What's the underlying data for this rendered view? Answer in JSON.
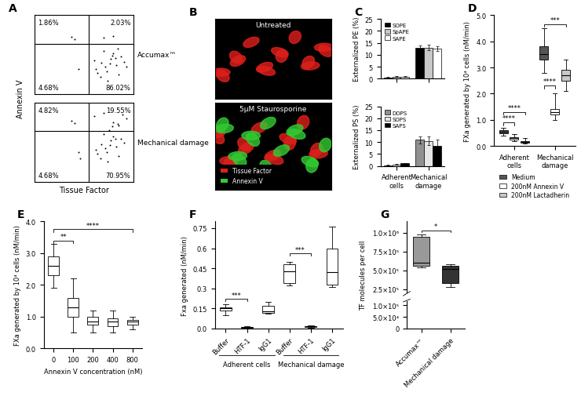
{
  "chart_data": [
    {
      "panel": "A",
      "type": "scatter",
      "label": "Accumax™",
      "y_label": "Annexin V",
      "log": true,
      "xlim": [
        1,
        10000
      ],
      "ylim": [
        1,
        10000
      ],
      "tick_labels": false,
      "color": "#000000",
      "marker": "o",
      "gate": {
        "x": 150,
        "y": 350
      },
      "quadrants": {
        "upper_left": "1.86%",
        "upper_right": "2.03%",
        "lower_left": "4.68%",
        "lower_right": "86.02%"
      },
      "x": [
        300,
        500,
        800,
        1200,
        2000,
        3000,
        450,
        700,
        1500,
        2500,
        4000,
        600,
        900,
        1800,
        350,
        1100,
        2200,
        5000,
        250,
        1400,
        60,
        40,
        30,
        600,
        1500
      ],
      "y": [
        20,
        40,
        15,
        60,
        30,
        80,
        8,
        25,
        120,
        10,
        45,
        150,
        5,
        70,
        12,
        35,
        200,
        25,
        50,
        90,
        20,
        600,
        800,
        700,
        900
      ]
    },
    {
      "type": "scatter",
      "label": "Mechanical damage",
      "x_label": "Tissue Factor",
      "log": true,
      "xlim": [
        1,
        10000
      ],
      "ylim": [
        1,
        10000
      ],
      "tick_labels": false,
      "color": "#000000",
      "marker": "o",
      "gate": {
        "x": 150,
        "y": 350
      },
      "quadrants": {
        "upper_left": "4.82%",
        "upper_right": "19.55%",
        "lower_left": "4.68%",
        "lower_right": "70.95%"
      },
      "x": [
        300,
        500,
        800,
        1200,
        2000,
        3000,
        450,
        700,
        1500,
        2500,
        4000,
        600,
        900,
        1800,
        350,
        1100,
        2200,
        5000,
        250,
        1400,
        60,
        40,
        30,
        600,
        1500,
        800,
        2500,
        3500,
        1000,
        70
      ],
      "y": [
        40,
        80,
        30,
        120,
        60,
        150,
        15,
        50,
        200,
        20,
        90,
        250,
        10,
        140,
        25,
        70,
        800,
        1500,
        2000,
        600,
        30,
        900,
        1200,
        3000,
        1000,
        5000,
        700,
        2500,
        400,
        15
      ]
    },
    {
      "panel": "B",
      "type": "image",
      "legend": "lower left",
      "channels": [
        {
          "name": "Tissue Factor",
          "color": "#e0201c"
        },
        {
          "name": "Annexin V",
          "color": "#33cc33"
        }
      ],
      "images": [
        {
          "title": "Untreated",
          "channels": [
            "Tissue Factor"
          ]
        },
        {
          "title": "5µM Staurosporine",
          "channels": [
            "Tissue Factor",
            "Annexin V"
          ]
        }
      ]
    },
    {
      "panel": "C",
      "type": "bar",
      "y_label": "Externalized PE (%)",
      "tick_labels": "y",
      "categories": [
        "Adherent cells",
        "Mechanical damage"
      ],
      "ylim": [
        0,
        25
      ],
      "yticks": [
        0,
        5,
        10,
        15,
        20,
        25
      ],
      "legend": "upper left",
      "series": [
        {
          "name": "SOPE",
          "color": "#000000",
          "values": [
            0.5,
            13
          ],
          "errors": [
            0.1,
            1.0
          ]
        },
        {
          "name": "SpAPE",
          "color": "#c8c8c8",
          "values": [
            0.8,
            13
          ],
          "errors": [
            0.2,
            1.2
          ]
        },
        {
          "name": "SAPE",
          "color": "#ffffff",
          "values": [
            0.8,
            12.5
          ],
          "errors": [
            0.2,
            1.0
          ]
        }
      ]
    },
    {
      "type": "bar",
      "y_label": "Externalized PS (%)",
      "categories": [
        "Adherent cells",
        "Mechanical damage"
      ],
      "ylim": [
        0,
        25
      ],
      "yticks": [
        0,
        5,
        10,
        15,
        20,
        25
      ],
      "legend": "upper left",
      "series": [
        {
          "name": "DOPS",
          "color": "#909090",
          "values": [
            0.3,
            11
          ],
          "errors": [
            0.1,
            1.5
          ]
        },
        {
          "name": "SOPS",
          "color": "#e6e6e6",
          "values": [
            0.6,
            10.5
          ],
          "errors": [
            0.2,
            1.8
          ]
        },
        {
          "name": "SAPS",
          "color": "#000000",
          "values": [
            1.0,
            8.5
          ],
          "errors": [
            0.3,
            2.5
          ]
        }
      ]
    },
    {
      "panel": "D",
      "type": "box",
      "y_label": "FXa generated by 10⁴ cells (nM/min)",
      "categories": [
        "Adherent cells",
        "Mechanical damage"
      ],
      "ylim": [
        0,
        5
      ],
      "yticks": [
        {
          "value": 0,
          "label": "0.0"
        },
        {
          "value": 1,
          "label": "1.0"
        },
        {
          "value": 2,
          "label": "2.0"
        },
        {
          "value": 3,
          "label": "3.0"
        },
        {
          "value": 4,
          "label": "4.0"
        },
        {
          "value": 5,
          "label": "5.0"
        }
      ],
      "legend": "bottom",
      "series": [
        {
          "name": "Medium",
          "color": "#555555",
          "boxes": [
            [
              0.4,
              0.5,
              0.55,
              0.6,
              0.7
            ],
            [
              2.8,
              3.3,
              3.5,
              3.8,
              4.5
            ]
          ]
        },
        {
          "name": "200nM Annexin V",
          "color": "#ffffff",
          "boxes": [
            [
              0.2,
              0.25,
              0.3,
              0.35,
              0.45
            ],
            [
              1.0,
              1.2,
              1.3,
              1.4,
              2.0
            ]
          ]
        },
        {
          "name": "200nM Lactadherin",
          "color": "#c8c8c8",
          "boxes": [
            [
              0.1,
              0.13,
              0.17,
              0.2,
              0.3
            ],
            [
              2.1,
              2.5,
              2.7,
              2.9,
              3.3
            ]
          ]
        }
      ],
      "annotations": [
        {
          "text": "****",
          "category": 0,
          "series": [
            0,
            1
          ],
          "y": 0.9
        },
        {
          "text": "****",
          "category": 0,
          "series": [
            0,
            2
          ],
          "y": 1.3
        },
        {
          "text": "****",
          "category": 1,
          "series": [
            0,
            1
          ],
          "y": 2.3
        },
        {
          "text": "***",
          "category": 1,
          "series": [
            0,
            2
          ],
          "y": 4.65
        }
      ]
    },
    {
      "panel": "E",
      "type": "box",
      "y_label": "FXa generated by 10⁴ cells (nM/min)",
      "x_label": "Annexin V concentration (nM)",
      "categories": [
        "0",
        "100",
        "200",
        "400",
        "800"
      ],
      "color": "#ffffff",
      "ylim": [
        0,
        4
      ],
      "yticks": [
        {
          "value": 0,
          "label": "0.0"
        },
        {
          "value": 1,
          "label": "1.0"
        },
        {
          "value": 2,
          "label": "2.0"
        },
        {
          "value": 3,
          "label": "3.0"
        },
        {
          "value": 4,
          "label": "4.0"
        }
      ],
      "boxes": [
        [
          1.9,
          2.3,
          2.6,
          2.9,
          3.3
        ],
        [
          0.5,
          1.0,
          1.3,
          1.6,
          2.2
        ],
        [
          0.5,
          0.75,
          0.85,
          1.0,
          1.2
        ],
        [
          0.5,
          0.7,
          0.85,
          0.95,
          1.2
        ],
        [
          0.6,
          0.75,
          0.85,
          0.9,
          1.0
        ]
      ],
      "annotations": [
        {
          "text": "**",
          "categories": [
            0,
            1
          ],
          "y": 3.4
        },
        {
          "text": "****",
          "categories": [
            0,
            4
          ],
          "y": 3.75
        }
      ]
    },
    {
      "panel": "F",
      "type": "box",
      "y_label": "Fxa generated (nM/min)",
      "categories": [
        "Buffer",
        "HTF-1",
        "IgG1",
        "Buffer",
        "HTF-1",
        "IgG1"
      ],
      "groups": [
        "Adherent cells",
        "Mechanical damage"
      ],
      "color": "#ffffff",
      "ylim": [
        0,
        0.8
      ],
      "yticks": [
        {
          "value": 0,
          "label": "0.0"
        },
        0.15,
        0.3,
        0.45,
        0.6,
        0.75
      ],
      "boxes": [
        [
          0.1,
          0.135,
          0.15,
          0.16,
          0.18
        ],
        [
          0.005,
          0.008,
          0.01,
          0.012,
          0.015
        ],
        [
          0.11,
          0.115,
          0.13,
          0.17,
          0.2
        ],
        [
          0.32,
          0.34,
          0.43,
          0.48,
          0.5
        ],
        [
          0.005,
          0.01,
          0.015,
          0.02,
          0.025
        ],
        [
          0.31,
          0.33,
          0.42,
          0.6,
          0.76
        ]
      ],
      "annotations": [
        {
          "text": "***",
          "categories": [
            0,
            1
          ],
          "y": 0.22
        },
        {
          "text": "***",
          "categories": [
            3,
            4
          ],
          "y": 0.56
        }
      ]
    },
    {
      "panel": "G",
      "type": "box",
      "y_label": "TF molecules per cell",
      "categories": [
        "Accumax™",
        "Mechanical damage"
      ],
      "colors": [
        "#999999",
        "#333333"
      ],
      "ylim": [
        0,
        1150000
      ],
      "break": [
        120000,
        200000
      ],
      "yticks": [
        0,
        {
          "value": 50000,
          "label": "5.0×10⁴"
        },
        {
          "value": 100000,
          "label": "1.0×10⁵"
        },
        {
          "value": 250000,
          "label": "2.5×10⁵"
        },
        {
          "value": 500000,
          "label": "5.0×10⁵"
        },
        {
          "value": 750000,
          "label": "7.5×10⁵"
        },
        {
          "value": 1000000,
          "label": "1.0×10⁶"
        }
      ],
      "boxes": [
        [
          540000,
          560000,
          600000,
          950000,
          980000
        ],
        [
          280000,
          330000,
          520000,
          560000,
          580000
        ]
      ],
      "annotations": [
        {
          "text": "*",
          "categories": [
            0,
            1
          ],
          "y": 1030000
        }
      ]
    }
  ]
}
